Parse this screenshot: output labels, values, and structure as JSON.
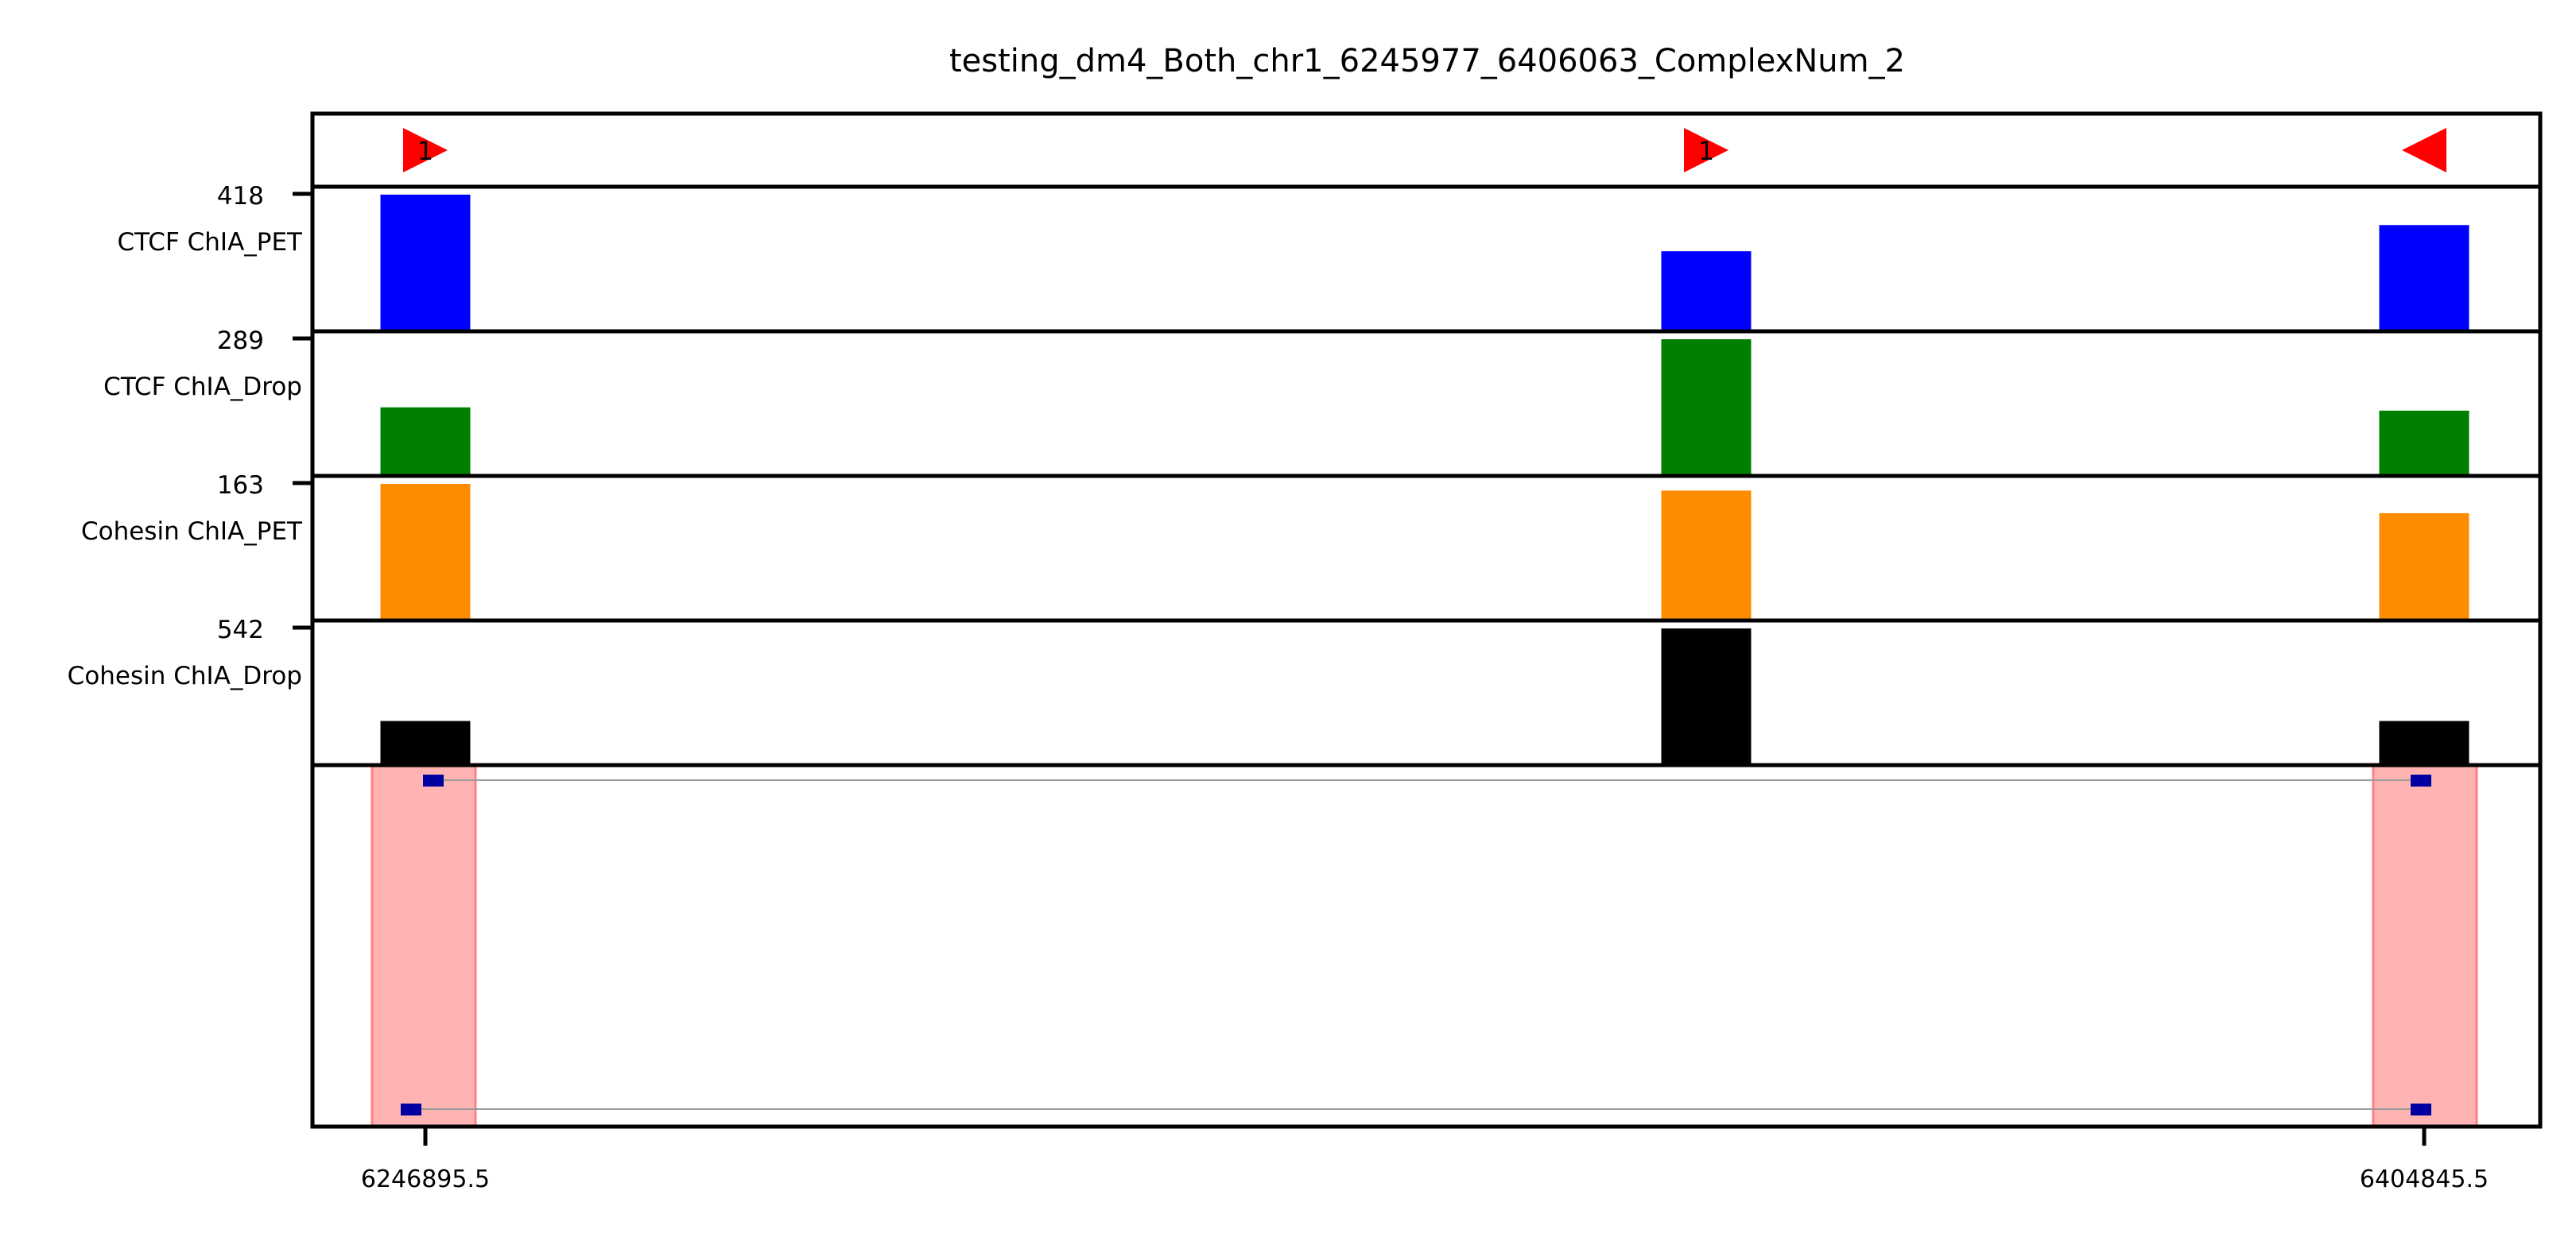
{
  "chart_data": {
    "type": "bar",
    "title": "testing_dm4_Both_chr1_6245977_6406063_ComplexNum_2",
    "anchors": [
      {
        "direction": "right",
        "label": "1"
      },
      {
        "direction": "right",
        "label": "1"
      },
      {
        "direction": "left",
        "label": ""
      }
    ],
    "tracks": [
      {
        "name": "CTCF ChIA_PET",
        "max": 418,
        "color": "#0000ff",
        "values": [
          418,
          245,
          325
        ]
      },
      {
        "name": "CTCF ChIA_Drop",
        "max": 289,
        "color": "#008000",
        "values": [
          145,
          289,
          138
        ]
      },
      {
        "name": "Cohesin ChIA_PET",
        "max": 163,
        "color": "#ff8c00",
        "values": [
          163,
          155,
          128
        ]
      },
      {
        "name": "Cohesin ChIA_Drop",
        "max": 542,
        "color": "#000000",
        "values": [
          175,
          542,
          175
        ]
      }
    ],
    "complexes": [
      {
        "region_color": "#ffb3b3",
        "fragment_color": "#0000a0",
        "line_color": "#999999"
      }
    ],
    "xticks": [
      "6246895.5",
      "6404845.5"
    ],
    "grid": false
  }
}
